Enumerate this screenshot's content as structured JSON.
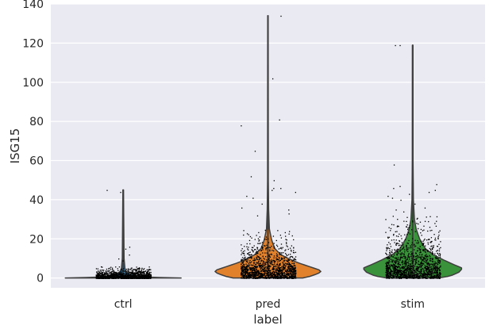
{
  "chart_data": {
    "type": "violin",
    "title": "",
    "xlabel": "label",
    "ylabel": "ISG15",
    "categories": [
      "ctrl",
      "pred",
      "stim"
    ],
    "ylim": [
      -5,
      140
    ],
    "yticks": [
      0,
      20,
      40,
      60,
      80,
      100,
      120,
      140
    ],
    "grid": true,
    "series": [
      {
        "category": "ctrl",
        "color": "#3274a1",
        "min": 0,
        "max": 45,
        "density": [
          [
            0,
            1.0
          ],
          [
            0.5,
            0.35
          ],
          [
            1,
            0.25
          ],
          [
            2,
            0.15
          ],
          [
            3,
            0.06
          ],
          [
            5,
            0.03
          ],
          [
            10,
            0.015
          ],
          [
            45,
            0.005
          ]
        ],
        "jitter_dense_top": 6,
        "outliers": [
          15,
          16,
          12,
          10,
          9,
          45,
          44
        ]
      },
      {
        "category": "pred",
        "color": "#e1812c",
        "min": 0,
        "max": 134,
        "density": [
          [
            0,
            0.6
          ],
          [
            1,
            0.75
          ],
          [
            3,
            0.92
          ],
          [
            4,
            0.9
          ],
          [
            6,
            0.7
          ],
          [
            8,
            0.5
          ],
          [
            10,
            0.35
          ],
          [
            12,
            0.22
          ],
          [
            15,
            0.12
          ],
          [
            18,
            0.08
          ],
          [
            20,
            0.06
          ],
          [
            25,
            0.025
          ],
          [
            35,
            0.012
          ],
          [
            50,
            0.006
          ],
          [
            134,
            0.004
          ]
        ],
        "jitter_dense_top": 25,
        "outliers": [
          134,
          102,
          81,
          78,
          65,
          52,
          50,
          46,
          46,
          45,
          44,
          42,
          41,
          38,
          36,
          35,
          33,
          32
        ]
      },
      {
        "category": "stim",
        "color": "#3a923a",
        "min": 0,
        "max": 119,
        "density": [
          [
            0,
            0.45
          ],
          [
            1,
            0.65
          ],
          [
            3,
            0.8
          ],
          [
            5,
            0.86
          ],
          [
            7,
            0.7
          ],
          [
            9,
            0.55
          ],
          [
            12,
            0.35
          ],
          [
            15,
            0.22
          ],
          [
            20,
            0.12
          ],
          [
            25,
            0.06
          ],
          [
            30,
            0.03
          ],
          [
            40,
            0.012
          ],
          [
            60,
            0.006
          ],
          [
            119,
            0.004
          ]
        ],
        "jitter_dense_top": 32,
        "outliers": [
          119,
          119,
          58,
          48,
          47,
          46,
          45,
          44,
          43,
          42,
          41,
          40,
          38,
          36,
          35,
          34
        ]
      }
    ]
  }
}
